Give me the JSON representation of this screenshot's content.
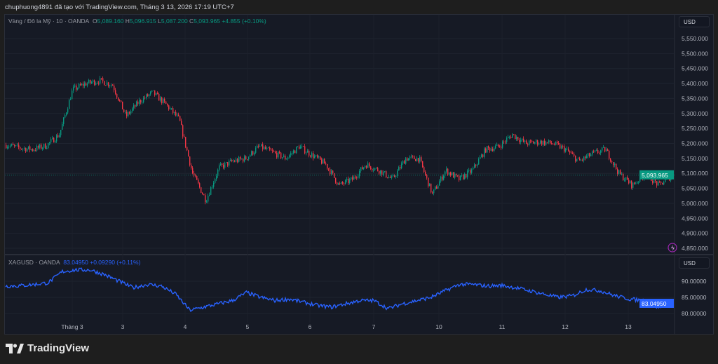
{
  "caption": "chuphuong4891 đã tạo với TradingView.com, Tháng 3 13, 2026 17:19 UTC+7",
  "footer": {
    "brand": "TradingView"
  },
  "colors": {
    "up": "#089981",
    "down": "#f23645",
    "silver_line": "#2962ff",
    "background": "#161a25"
  },
  "chart_data": [
    {
      "type": "candlestick",
      "title": "Vàng / Đô la Mỹ · 10 · OANDA",
      "ohlc": {
        "O": "5,089.160",
        "H": "5,096.915",
        "L": "5,087.200",
        "C": "5,093.965",
        "change": "+4.855 (+0.10%)"
      },
      "currency": "USD",
      "last_price": "5,093.965",
      "ylim": [
        4850,
        5550
      ],
      "yticks": [
        "5,550.000",
        "5,500.000",
        "5,450.000",
        "5,400.000",
        "5,350.000",
        "5,300.000",
        "5,250.000",
        "5,200.000",
        "5,150.000",
        "5,100.000",
        "5,050.000",
        "5,000.000",
        "4,950.000",
        "4,900.000",
        "4,850.000"
      ],
      "close_samples": [
        5195,
        5185,
        5180,
        5192,
        5230,
        5380,
        5400,
        5410,
        5395,
        5290,
        5340,
        5370,
        5330,
        5280,
        5100,
        5010,
        5120,
        5140,
        5150,
        5190,
        5170,
        5150,
        5190,
        5160,
        5130,
        5060,
        5080,
        5130,
        5110,
        5080,
        5150,
        5150,
        5030,
        5110,
        5080,
        5110,
        5180,
        5190,
        5230,
        5200,
        5205,
        5200,
        5180,
        5140,
        5165,
        5180,
        5100,
        5060,
        5100,
        5060,
        5094
      ]
    },
    {
      "type": "line",
      "title": "XAGUSD · OANDA",
      "last": "83.04950",
      "change": "+0.09290 (+0.11%)",
      "currency": "USD",
      "ylim": [
        78,
        97
      ],
      "yticks": [
        "90.00000",
        "85.00000",
        "80.00000"
      ],
      "close_samples": [
        88.5,
        88.6,
        89,
        89.5,
        93,
        93.5,
        93.5,
        92,
        90,
        88,
        89,
        88.5,
        86,
        81,
        82,
        83,
        84,
        86.5,
        85,
        84,
        84.5,
        83.5,
        82.5,
        82,
        83,
        84,
        84,
        81.5,
        83,
        84,
        85,
        87,
        89,
        89,
        88.5,
        88.7,
        88,
        87,
        86,
        85,
        85.5,
        87.5,
        87,
        85.5,
        84.5,
        84,
        82,
        83.05
      ]
    },
    {
      "type": "time_axis",
      "xticks": [
        "Tháng 3",
        "3",
        "4",
        "5",
        "6",
        "7",
        "10",
        "11",
        "12",
        "13"
      ]
    }
  ]
}
